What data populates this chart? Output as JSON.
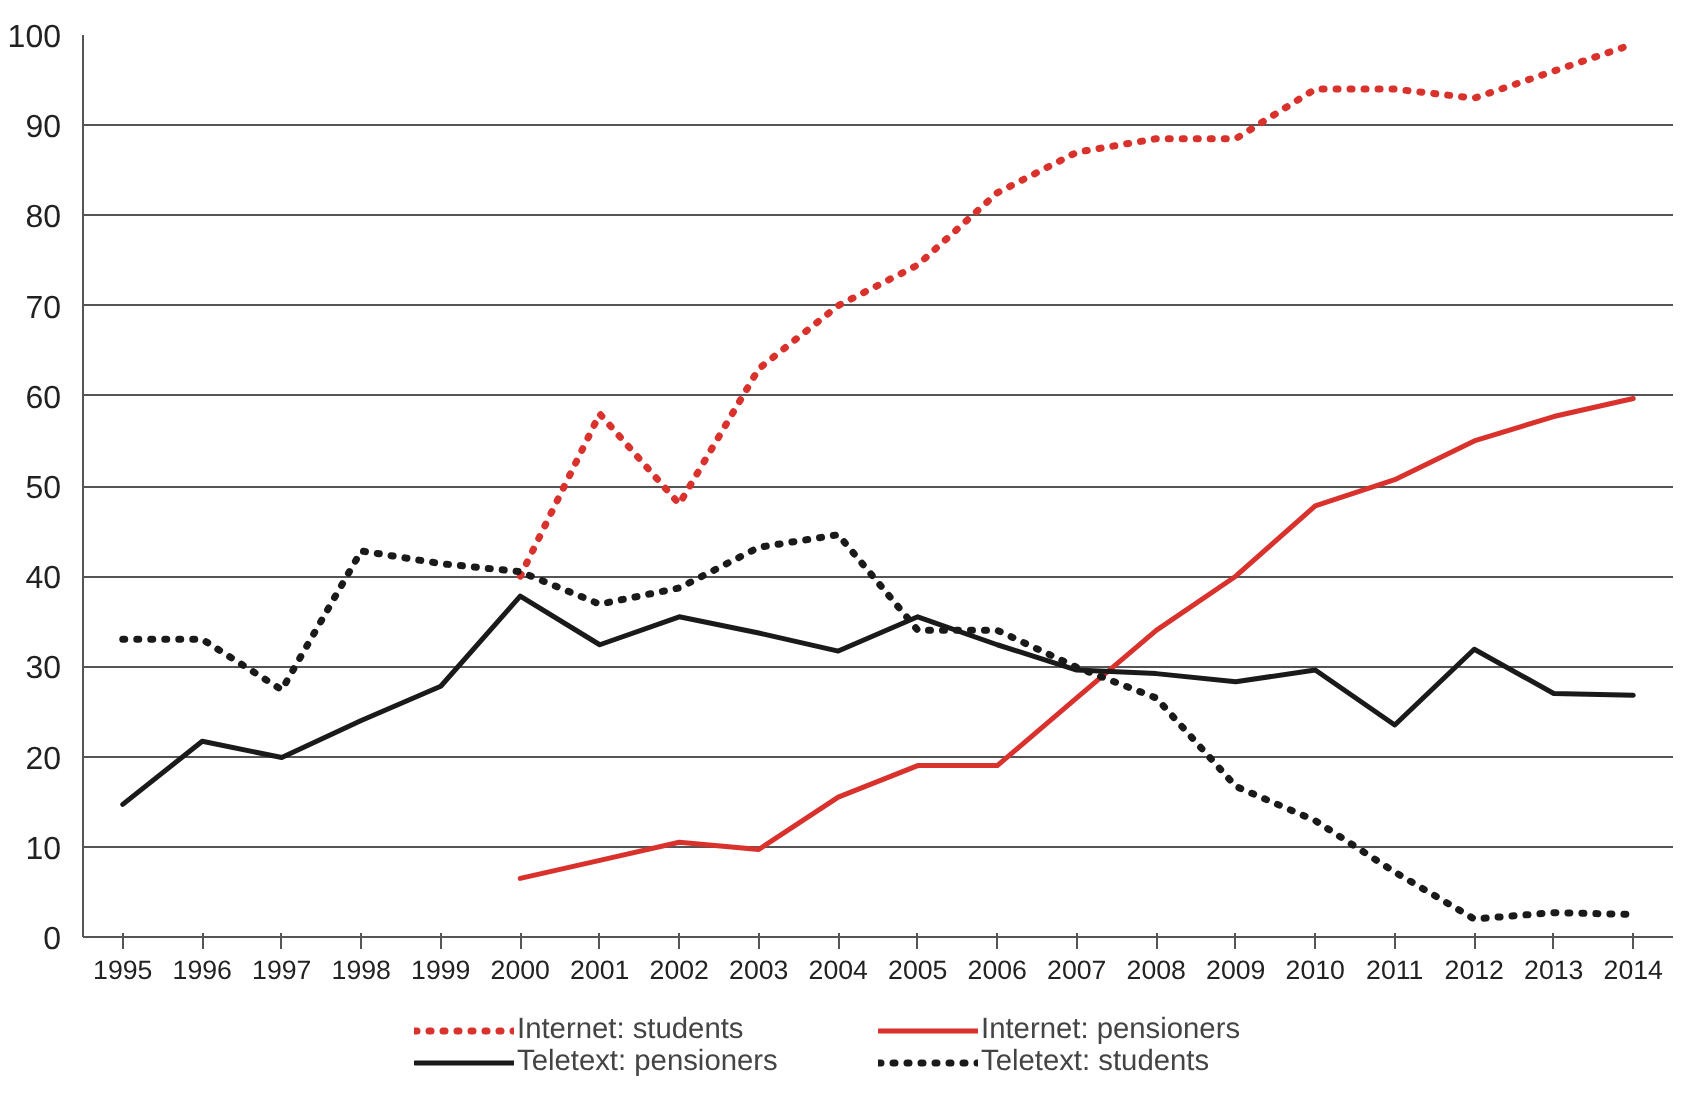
{
  "chart_data": {
    "type": "line",
    "categories": [
      "1995",
      "1996",
      "1997",
      "1998",
      "1999",
      "2000",
      "2001",
      "2002",
      "2003",
      "2004",
      "2005",
      "2006",
      "2007",
      "2008",
      "2009",
      "2010",
      "2011",
      "2012",
      "2013",
      "2014"
    ],
    "ylim": [
      0,
      100
    ],
    "yticks": [
      0,
      10,
      20,
      30,
      40,
      50,
      60,
      70,
      80,
      90,
      100
    ],
    "grid": "y",
    "legend": "bottom",
    "marker": "none",
    "series": [
      {
        "name": "Internet: students",
        "color": "#d9312b",
        "line_style": "dotted",
        "values": [
          null,
          null,
          null,
          null,
          null,
          40,
          58,
          48,
          63,
          70,
          74.5,
          82.5,
          87,
          88.5,
          88.5,
          94,
          94,
          93,
          96,
          99
        ]
      },
      {
        "name": "Internet: pensioners",
        "color": "#d9312b",
        "line_style": "solid",
        "values": [
          null,
          null,
          null,
          null,
          null,
          6.5,
          8.5,
          10.5,
          9.7,
          15.5,
          19,
          19,
          26.5,
          34,
          40,
          47.8,
          50.7,
          55,
          57.7,
          59.7
        ]
      },
      {
        "name": "Teletext: pensioners",
        "color": "#1a1a1a",
        "line_style": "solid",
        "values": [
          14.7,
          21.7,
          19.9,
          24,
          27.8,
          37.8,
          32.4,
          35.5,
          33.7,
          31.7,
          35.5,
          32.4,
          29.6,
          29.2,
          28.3,
          29.6,
          23.5,
          31.9,
          27,
          26.8
        ]
      },
      {
        "name": "Teletext: students",
        "color": "#1a1a1a",
        "line_style": "dotted",
        "values": [
          33,
          33,
          27.4,
          42.8,
          41.4,
          40.5,
          36.9,
          38.7,
          43.2,
          44.6,
          34,
          34,
          29.9,
          26.5,
          16.7,
          12.9,
          7.2,
          2,
          2.7,
          2.5
        ]
      }
    ]
  }
}
